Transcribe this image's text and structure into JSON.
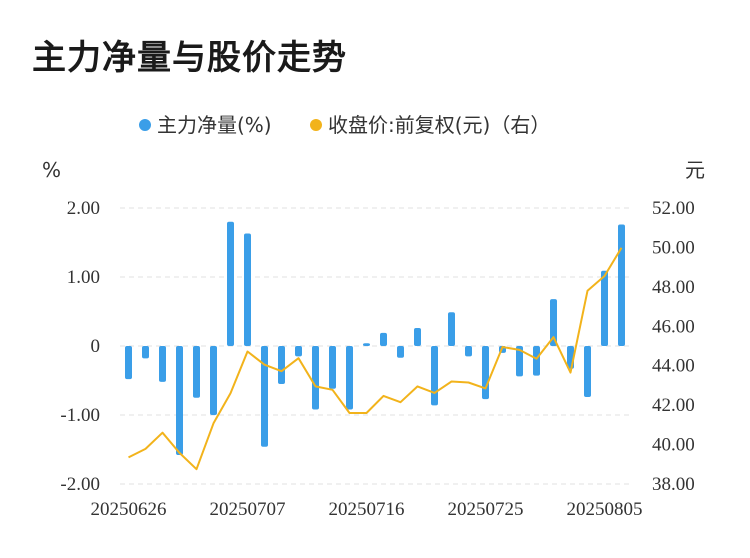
{
  "title": "主力净量与股价走势",
  "colors": {
    "bar": "#3a9ee8",
    "line": "#f2b31b",
    "grid": "#e2e2e2"
  },
  "chart_data": {
    "type": "bar+line",
    "legend": {
      "bar_label": "主力净量(%)",
      "line_label": "收盘价:前复权(元)（右）"
    },
    "left_axis": {
      "unit": "%",
      "range": [
        -2.0,
        2.0
      ],
      "ticks": [
        "2.00",
        "1.00",
        "0",
        "-1.00",
        "-2.00"
      ],
      "tick_values": [
        2,
        1,
        0,
        -1,
        -2
      ]
    },
    "right_axis": {
      "unit": "元",
      "range": [
        38,
        52
      ],
      "ticks": [
        "52.00",
        "50.00",
        "48.00",
        "46.00",
        "44.00",
        "42.00",
        "40.00",
        "38.00"
      ],
      "tick_values": [
        52,
        50,
        48,
        46,
        44,
        42,
        40,
        38
      ]
    },
    "x_ticks": [
      {
        "label": "20250626",
        "index": 0
      },
      {
        "label": "20250707",
        "index": 7
      },
      {
        "label": "20250716",
        "index": 14
      },
      {
        "label": "20250725",
        "index": 21
      },
      {
        "label": "20250805",
        "index": 28
      }
    ],
    "bars": [
      -0.48,
      -0.18,
      -0.52,
      -1.58,
      -0.75,
      -1.0,
      1.8,
      1.63,
      -1.46,
      -0.55,
      -0.15,
      -0.92,
      -0.62,
      -0.92,
      0.04,
      0.19,
      -0.17,
      0.26,
      -0.86,
      0.49,
      -0.15,
      -0.77,
      -0.1,
      -0.44,
      -0.43,
      0.68,
      -0.33,
      -0.74,
      1.09,
      1.76
    ],
    "line": [
      39.35,
      39.78,
      40.6,
      39.58,
      38.75,
      41.08,
      42.6,
      44.72,
      44.05,
      43.72,
      44.38,
      42.95,
      42.78,
      41.6,
      41.6,
      42.47,
      42.15,
      42.95,
      42.62,
      43.2,
      43.15,
      42.85,
      44.95,
      44.8,
      44.35,
      45.45,
      43.65,
      47.8,
      48.55,
      49.98
    ]
  }
}
